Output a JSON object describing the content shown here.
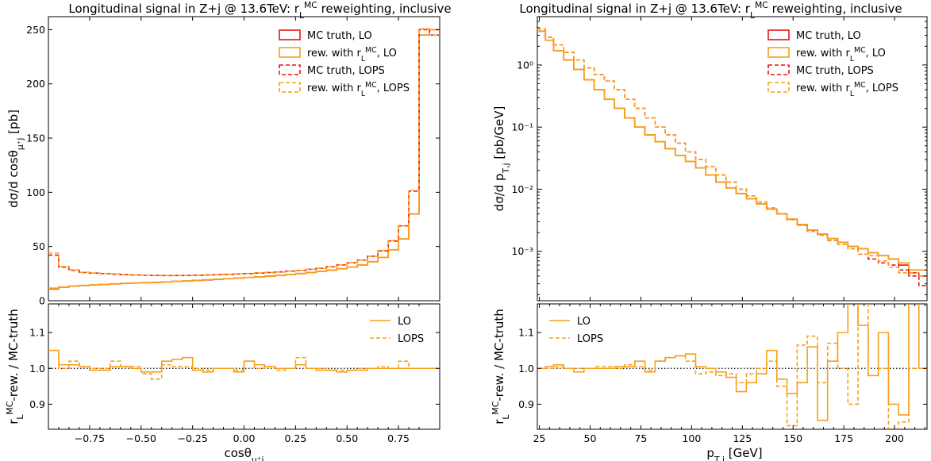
{
  "chart_data": [
    {
      "type": "line",
      "title": "Longitudinal signal in Z+j @ 13.6TeV: r_L^MC reweighting, inclusive",
      "xlabel": "cosθ_{μ⁺j}",
      "ylabel": "dσ/d cosθ_{μ⁺j} [pb]",
      "xlim": [
        -0.95,
        0.95
      ],
      "ylim": [
        0,
        262
      ],
      "y_ticks": [
        "0",
        "50",
        "100",
        "150",
        "200",
        "250"
      ],
      "legend_position": "top-right",
      "legend": [
        "MC truth, LO",
        "rew. with r_L^MC, LO",
        "MC truth, LOPS",
        "rew. with r_L^MC, LOPS"
      ],
      "bin_edges": [
        -0.95,
        -0.9,
        -0.85,
        -0.8,
        -0.75,
        -0.7,
        -0.65,
        -0.6,
        -0.55,
        -0.5,
        -0.45,
        -0.4,
        -0.35,
        -0.3,
        -0.25,
        -0.2,
        -0.15,
        -0.1,
        -0.05,
        0.0,
        0.05,
        0.1,
        0.15,
        0.2,
        0.25,
        0.3,
        0.35,
        0.4,
        0.45,
        0.5,
        0.55,
        0.6,
        0.65,
        0.7,
        0.75,
        0.8,
        0.85,
        0.9,
        0.95
      ],
      "series": [
        {
          "name": "MC truth, LO",
          "values": [
            11,
            12.5,
            13.5,
            14,
            14.5,
            15,
            15.5,
            16,
            16.3,
            16.7,
            17,
            17.3,
            17.8,
            18.2,
            18.7,
            19.2,
            19.8,
            20.3,
            20.8,
            21.4,
            22,
            22.6,
            23.3,
            24,
            25,
            26,
            27,
            28.2,
            29.5,
            31,
            33,
            36,
            40,
            47,
            57,
            80,
            245,
            250
          ]
        },
        {
          "name": "rew. with r_L^MC, LO",
          "values": [
            11.6,
            12.6,
            13.6,
            14.1,
            14.6,
            15.1,
            15.6,
            16.1,
            16.3,
            16.6,
            16.8,
            17.3,
            17.9,
            18.3,
            18.8,
            19.4,
            19.8,
            20.3,
            20.8,
            21.5,
            22.1,
            22.7,
            23.3,
            24.1,
            25.1,
            26,
            27,
            28.2,
            29.5,
            31,
            33,
            36,
            40,
            47,
            57,
            80,
            245,
            250
          ]
        },
        {
          "name": "MC truth, LOPS",
          "values": [
            42,
            31,
            28,
            26,
            25.5,
            25,
            24.5,
            24,
            23.7,
            23.5,
            23.3,
            23.2,
            23.2,
            23.3,
            23.5,
            23.7,
            24,
            24.3,
            24.7,
            25,
            25.5,
            26,
            26.6,
            27.3,
            28,
            29,
            30,
            31.3,
            33,
            35,
            37.5,
            41,
            46,
            55,
            69,
            101,
            250,
            245
          ]
        },
        {
          "name": "rew. with r_L^MC, LOPS",
          "values": [
            44,
            31.5,
            28.5,
            26.2,
            25.6,
            25.1,
            24.8,
            24.1,
            23.8,
            23.6,
            23.2,
            23.3,
            23.3,
            23.4,
            23.6,
            23.8,
            24.1,
            24.4,
            24.8,
            25.1,
            25.6,
            26,
            26.5,
            27.2,
            27.9,
            29,
            29.9,
            31.2,
            33,
            35,
            37.4,
            41,
            46.3,
            55.6,
            69,
            102,
            251,
            245
          ]
        }
      ]
    },
    {
      "type": "line",
      "xlabel": "cosθ_{μ⁺j}",
      "ylabel": "r_L^MC-rew. / MC-truth",
      "xlim": [
        -0.95,
        0.95
      ],
      "ylim": [
        0.83,
        1.18
      ],
      "x_ticks": [
        "−0.75",
        "−0.50",
        "−0.25",
        "0.00",
        "0.25",
        "0.50",
        "0.75"
      ],
      "y_ticks": [
        "0.9",
        "1.0",
        "1.1"
      ],
      "legend_position": "top-right",
      "legend": [
        "LO",
        "LOPS"
      ],
      "bin_edges": [
        -0.95,
        -0.9,
        -0.85,
        -0.8,
        -0.75,
        -0.7,
        -0.65,
        -0.6,
        -0.55,
        -0.5,
        -0.45,
        -0.4,
        -0.35,
        -0.3,
        -0.25,
        -0.2,
        -0.15,
        -0.1,
        -0.05,
        0.0,
        0.05,
        0.1,
        0.15,
        0.2,
        0.25,
        0.3,
        0.35,
        0.4,
        0.45,
        0.5,
        0.55,
        0.6,
        0.65,
        0.7,
        0.75,
        0.8,
        0.85,
        0.9,
        0.95
      ],
      "series": [
        {
          "name": "LO",
          "values": [
            1.05,
            1.01,
            1.01,
            1.005,
            0.995,
            0.995,
            1.005,
            1.005,
            1.0,
            0.99,
            0.99,
            1.02,
            1.025,
            1.03,
            0.995,
            0.99,
            1.0,
            1.0,
            0.99,
            1.02,
            1.01,
            1.005,
            1.0,
            1.0,
            1.01,
            1.0,
            0.995,
            0.995,
            0.99,
            0.995,
            0.995,
            1.0,
            1.0,
            1.0,
            1.0,
            1.0,
            1.0,
            1.0
          ]
        },
        {
          "name": "LOPS",
          "values": [
            1.05,
            1.0,
            1.02,
            1.005,
            1.0,
            1.0,
            1.02,
            1.005,
            1.005,
            0.985,
            0.97,
            1.01,
            1.005,
            1.005,
            1.0,
            0.995,
            1.0,
            1.0,
            0.995,
            1.02,
            1.0,
            1.005,
            0.995,
            1.0,
            1.03,
            1.0,
            1.0,
            0.995,
            0.995,
            0.995,
            1.0,
            1.0,
            1.005,
            1.0,
            1.02,
            1.0,
            1.0,
            1.0
          ]
        }
      ]
    },
    {
      "type": "line",
      "title": "Longitudinal signal in Z+j @ 13.6TeV: r_L^MC reweighting, inclusive",
      "xlabel": "p_{T,j} [GeV]",
      "ylabel": "dσ/d p_{T,j}  [pb/GeV]",
      "xlim": [
        24,
        216
      ],
      "ylim": [
        0.00016,
        6
      ],
      "y_scale": "log",
      "y_ticks": [
        "10⁻³",
        "10⁻²",
        "10⁻¹",
        "10⁰"
      ],
      "legend_position": "top-right",
      "legend": [
        "MC truth, LO",
        "rew. with r_L^MC, LO",
        "MC truth, LOPS",
        "rew. with r_L^MC, LOPS"
      ],
      "bin_edges": [
        24,
        28,
        32,
        37,
        42,
        47,
        52,
        57,
        62,
        67,
        72,
        77,
        82,
        87,
        92,
        97,
        102,
        107,
        112,
        117,
        122,
        127,
        132,
        137,
        142,
        147,
        152,
        157,
        162,
        167,
        172,
        177,
        182,
        187,
        192,
        197,
        202,
        207,
        212,
        216
      ],
      "series": [
        {
          "name": "MC truth, LO",
          "values": [
            3.5,
            2.5,
            1.7,
            1.2,
            0.85,
            0.58,
            0.4,
            0.28,
            0.2,
            0.14,
            0.1,
            0.075,
            0.058,
            0.045,
            0.035,
            0.028,
            0.022,
            0.017,
            0.013,
            0.0105,
            0.0085,
            0.007,
            0.0058,
            0.0048,
            0.004,
            0.0033,
            0.0027,
            0.0022,
            0.0019,
            0.0016,
            0.0014,
            0.0012,
            0.0011,
            0.00095,
            0.00085,
            0.00075,
            0.0006,
            0.00045,
            0.0004
          ]
        },
        {
          "name": "rew. with r_L^MC, LO",
          "values": [
            3.5,
            2.5,
            1.7,
            1.2,
            0.85,
            0.58,
            0.4,
            0.28,
            0.2,
            0.14,
            0.1,
            0.075,
            0.058,
            0.045,
            0.035,
            0.028,
            0.022,
            0.017,
            0.013,
            0.0105,
            0.0085,
            0.007,
            0.0058,
            0.0048,
            0.004,
            0.0033,
            0.0027,
            0.0022,
            0.0019,
            0.0016,
            0.0014,
            0.0012,
            0.0011,
            0.00095,
            0.00085,
            0.00075,
            0.00065,
            0.0005,
            0.0005
          ]
        },
        {
          "name": "MC truth, LOPS",
          "values": [
            3.8,
            2.8,
            2.1,
            1.6,
            1.2,
            0.9,
            0.7,
            0.55,
            0.4,
            0.28,
            0.2,
            0.14,
            0.1,
            0.075,
            0.055,
            0.04,
            0.03,
            0.023,
            0.017,
            0.013,
            0.01,
            0.0078,
            0.0062,
            0.005,
            0.004,
            0.0032,
            0.0026,
            0.0021,
            0.0018,
            0.0015,
            0.0013,
            0.0011,
            0.0009,
            0.00075,
            0.00065,
            0.0006,
            0.0005,
            0.0004,
            0.00028
          ]
        },
        {
          "name": "rew. with r_L^MC, LOPS",
          "values": [
            3.8,
            2.8,
            2.1,
            1.6,
            1.2,
            0.9,
            0.7,
            0.55,
            0.4,
            0.28,
            0.2,
            0.14,
            0.1,
            0.075,
            0.055,
            0.04,
            0.03,
            0.023,
            0.017,
            0.013,
            0.01,
            0.0078,
            0.0062,
            0.005,
            0.004,
            0.0032,
            0.0026,
            0.0021,
            0.0018,
            0.0015,
            0.0013,
            0.0011,
            0.0009,
            0.00085,
            0.0007,
            0.00055,
            0.00045,
            0.00045,
            0.0004
          ]
        }
      ]
    },
    {
      "type": "line",
      "xlabel": "p_{T,j} [GeV]",
      "ylabel": "r_L^MC-rew. / MC-truth",
      "xlim": [
        24,
        216
      ],
      "ylim": [
        0.83,
        1.18
      ],
      "x_ticks": [
        "25",
        "50",
        "75",
        "100",
        "125",
        "150",
        "175",
        "200"
      ],
      "y_ticks": [
        "0.9",
        "1.0",
        "1.1"
      ],
      "legend_position": "top-left",
      "legend": [
        "LO",
        "LOPS"
      ],
      "bin_edges": [
        24,
        28,
        32,
        37,
        42,
        47,
        52,
        57,
        62,
        67,
        72,
        77,
        82,
        87,
        92,
        97,
        102,
        107,
        112,
        117,
        122,
        127,
        132,
        137,
        142,
        147,
        152,
        157,
        162,
        167,
        172,
        177,
        182,
        187,
        192,
        197,
        202,
        207,
        212,
        216
      ],
      "series": [
        {
          "name": "LO",
          "values": [
            1.0,
            1.005,
            1.01,
            1.0,
            0.99,
            1.0,
            1.0,
            1.0,
            1.005,
            1.005,
            1.02,
            0.99,
            1.02,
            1.03,
            1.035,
            1.04,
            1.005,
            1.0,
            0.99,
            0.975,
            0.935,
            0.96,
            0.985,
            1.05,
            0.97,
            0.93,
            0.96,
            1.06,
            0.855,
            1.02,
            1.1,
            1.23,
            1.12,
            0.98,
            1.1,
            0.9,
            0.87,
            1.2,
            1.0
          ]
        },
        {
          "name": "LOPS",
          "values": [
            1.0,
            1.0,
            1.005,
            1.0,
            1.0,
            1.0,
            1.005,
            1.005,
            1.0,
            1.01,
            1.005,
            0.995,
            1.02,
            1.03,
            1.035,
            1.02,
            0.985,
            0.99,
            0.98,
            0.985,
            0.96,
            0.985,
            1.0,
            1.02,
            0.95,
            0.84,
            1.065,
            1.09,
            0.96,
            1.07,
            1.0,
            0.9,
            1.28,
            0.98,
            1.0,
            0.8,
            0.85,
            1.0,
            1.0
          ]
        }
      ]
    }
  ]
}
